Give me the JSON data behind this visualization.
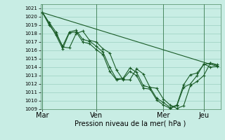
{
  "xlabel": "Pression niveau de la mer( hPa )",
  "plot_bg_color": "#c8ede4",
  "grid_color": "#90c8b8",
  "line_color": "#1a5c28",
  "vline_color": "#4a8860",
  "ylim": [
    1009,
    1021.5
  ],
  "ymin": 1009,
  "ymax": 1021,
  "yticks": [
    1009,
    1010,
    1011,
    1012,
    1013,
    1014,
    1015,
    1016,
    1017,
    1018,
    1019,
    1020,
    1021
  ],
  "xtick_labels": [
    "Mar",
    "Ven",
    "Mer",
    "Jeu"
  ],
  "xtick_positions": [
    0,
    8,
    18,
    24
  ],
  "vlines": [
    0,
    8,
    18,
    24
  ],
  "xlim": [
    -0.3,
    26.5
  ],
  "line1_x": [
    0,
    26
  ],
  "line1_y": [
    1020.5,
    1014.1
  ],
  "line2_x": [
    0,
    1,
    2,
    3,
    4,
    5,
    6,
    7,
    8,
    9,
    10,
    11,
    12,
    13,
    14,
    15,
    16,
    17,
    18,
    19,
    20,
    21,
    22,
    23,
    24,
    25,
    26
  ],
  "line2_y": [
    1020.5,
    1019.3,
    1018.2,
    1016.4,
    1016.3,
    1018.0,
    1018.3,
    1017.2,
    1017.0,
    1016.2,
    1015.7,
    1013.7,
    1012.5,
    1012.5,
    1013.8,
    1013.2,
    1011.6,
    1011.5,
    1010.2,
    1009.5,
    1009.1,
    1009.4,
    1011.8,
    1012.3,
    1013.0,
    1014.5,
    1014.2
  ],
  "line3_x": [
    0,
    1,
    2,
    3,
    4,
    5,
    6,
    7,
    8,
    9,
    10,
    11,
    12,
    13,
    14,
    15,
    16,
    17,
    18,
    19,
    20,
    21,
    22,
    23,
    24,
    25,
    26
  ],
  "line3_y": [
    1020.5,
    1019.2,
    1017.8,
    1016.2,
    1018.1,
    1018.2,
    1017.0,
    1016.8,
    1016.1,
    1015.5,
    1013.5,
    1012.5,
    1012.6,
    1013.5,
    1013.0,
    1011.5,
    1011.4,
    1010.1,
    1009.5,
    1009.1,
    1009.4,
    1011.6,
    1012.0,
    1013.0,
    1014.4,
    1014.0,
    1014.1
  ],
  "line4_x": [
    0,
    1,
    2,
    3,
    4,
    5,
    6,
    7,
    8,
    9,
    10,
    11,
    12,
    13,
    14,
    15,
    16,
    17,
    18,
    19,
    20,
    21,
    22,
    23,
    24,
    25,
    26
  ],
  "line4_y": [
    1020.5,
    1019.0,
    1018.0,
    1016.5,
    1018.2,
    1018.4,
    1017.3,
    1017.1,
    1016.5,
    1015.8,
    1014.0,
    1012.6,
    1012.7,
    1013.9,
    1013.4,
    1011.8,
    1011.6,
    1010.3,
    1009.8,
    1009.2,
    1009.5,
    1011.9,
    1013.1,
    1013.3,
    1014.3,
    1014.5,
    1014.3
  ],
  "lw": 0.8,
  "ms": 2.5,
  "xlabel_fontsize": 7,
  "ytick_fontsize": 5,
  "xtick_fontsize": 7
}
